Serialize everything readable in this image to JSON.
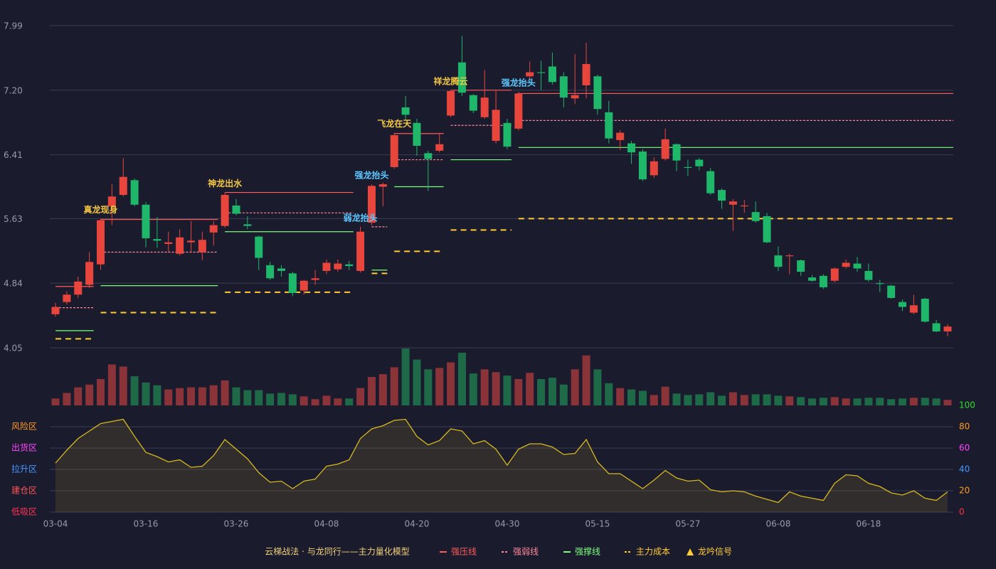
{
  "chart_data": [
    {
      "type": "candlestick",
      "title": "云梯战法 · 与龙同行——主力量化模型",
      "categories": [
        "03-04",
        null,
        null,
        null,
        null,
        null,
        null,
        null,
        "03-16",
        null,
        null,
        null,
        null,
        null,
        null,
        null,
        "03-26",
        null,
        null,
        null,
        null,
        null,
        null,
        null,
        "04-08",
        null,
        null,
        null,
        null,
        null,
        null,
        null,
        "04-20",
        null,
        null,
        null,
        null,
        null,
        null,
        null,
        "04-30",
        null,
        null,
        null,
        null,
        null,
        null,
        null,
        "05-15",
        null,
        null,
        null,
        null,
        null,
        null,
        null,
        "05-27",
        null,
        null,
        null,
        null,
        null,
        null,
        null,
        "06-08",
        null,
        null,
        null,
        null,
        null,
        null,
        null,
        "06-18",
        null,
        null,
        null,
        null,
        null,
        null,
        null
      ],
      "open": [
        4.46,
        4.61,
        4.7,
        4.82,
        5.07,
        5.78,
        5.92,
        6.1,
        5.8,
        5.38,
        5.32,
        5.2,
        5.34,
        5.22,
        5.46,
        5.54,
        5.79,
        5.56,
        5.41,
        5.06,
        5.02,
        4.96,
        4.75,
        4.88,
        4.99,
        5.01,
        5.07,
        4.99,
        5.58,
        6.02,
        6.26,
        6.99,
        6.8,
        6.43,
        6.46,
        6.89,
        7.54,
        7.14,
        6.87,
        6.58,
        6.8,
        6.73,
        7.37,
        7.42,
        7.49,
        7.37,
        7.1,
        7.26,
        7.37,
        6.93,
        6.59,
        6.55,
        6.45,
        6.16,
        6.36,
        6.54,
        6.26,
        6.35,
        6.21,
        5.98,
        5.8,
        5.78,
        5.71,
        5.66,
        5.18,
        5.17,
        5.12,
        4.91,
        4.93,
        4.87,
        5.04,
        5.08,
        4.99,
        4.84,
        4.81,
        4.61,
        4.48,
        4.65,
        4.35,
        4.25
      ],
      "close": [
        4.55,
        4.7,
        4.86,
        5.1,
        5.61,
        5.9,
        6.14,
        5.8,
        5.39,
        5.36,
        5.34,
        5.4,
        5.36,
        5.37,
        5.55,
        5.92,
        5.69,
        5.54,
        5.15,
        4.9,
        4.99,
        4.72,
        4.87,
        4.9,
        5.09,
        5.08,
        5.05,
        5.47,
        6.03,
        6.05,
        6.65,
        6.9,
        6.52,
        6.36,
        6.54,
        7.19,
        7.17,
        6.95,
        7.11,
        6.96,
        6.51,
        7.16,
        7.42,
        7.41,
        7.3,
        7.11,
        7.14,
        7.52,
        6.97,
        6.61,
        6.68,
        6.44,
        6.11,
        6.33,
        6.6,
        6.34,
        6.25,
        6.27,
        5.94,
        5.85,
        5.84,
        5.79,
        5.6,
        5.34,
        5.04,
        5.18,
        4.98,
        4.87,
        4.79,
        5.02,
        5.09,
        5.02,
        4.88,
        4.83,
        4.66,
        4.55,
        4.57,
        4.37,
        4.25,
        4.31
      ],
      "low": [
        4.43,
        4.58,
        4.66,
        4.78,
        5.0,
        5.55,
        5.9,
        5.78,
        5.28,
        5.27,
        5.22,
        5.18,
        5.22,
        5.12,
        5.3,
        5.52,
        5.67,
        5.5,
        5.0,
        4.88,
        4.92,
        4.68,
        4.7,
        4.82,
        4.95,
        4.98,
        5.0,
        4.97,
        5.55,
        5.78,
        6.24,
        6.83,
        6.4,
        5.97,
        6.44,
        6.87,
        7.13,
        6.92,
        6.85,
        6.55,
        6.48,
        6.71,
        7.33,
        7.2,
        7.27,
        6.99,
        7.03,
        7.1,
        6.9,
        6.55,
        6.47,
        6.3,
        6.09,
        6.13,
        6.34,
        6.21,
        6.15,
        6.22,
        5.92,
        5.75,
        5.48,
        5.7,
        5.58,
        5.33,
        4.99,
        4.95,
        4.93,
        4.86,
        4.77,
        4.85,
        5.02,
        4.98,
        4.86,
        4.73,
        4.65,
        4.5,
        4.46,
        4.36,
        4.24,
        4.19
      ],
      "high": [
        4.6,
        4.74,
        4.92,
        5.22,
        5.63,
        6.05,
        6.37,
        6.12,
        5.83,
        5.65,
        5.47,
        5.5,
        5.6,
        5.47,
        5.6,
        5.95,
        5.87,
        5.66,
        5.42,
        5.1,
        5.06,
        4.98,
        4.88,
        5.0,
        5.13,
        5.13,
        5.11,
        5.53,
        6.05,
        6.07,
        6.68,
        7.13,
        6.85,
        6.46,
        6.68,
        7.2,
        7.86,
        7.15,
        7.45,
        7.19,
        6.85,
        7.18,
        7.55,
        7.56,
        7.66,
        7.42,
        7.64,
        7.78,
        7.39,
        7.07,
        6.71,
        6.58,
        6.48,
        6.38,
        6.73,
        6.55,
        6.35,
        6.37,
        6.25,
        6.0,
        5.87,
        5.86,
        5.84,
        5.7,
        5.29,
        5.2,
        5.13,
        4.94,
        4.95,
        5.03,
        5.13,
        5.16,
        5.08,
        4.88,
        4.82,
        4.64,
        4.7,
        4.66,
        4.39,
        4.34
      ],
      "up_color": "#e8453c",
      "down_color": "#1fb76a",
      "ylim": [
        4.05,
        7.99
      ],
      "yticks": [
        7.99,
        {
          "value": 7.2,
          "label": "7.20"
        },
        6.41,
        5.63,
        4.84,
        4.05
      ],
      "grid": true,
      "levels": [
        {
          "name": "强压线",
          "color": "#ff5b5b",
          "dashed": false,
          "segments": [
            [
              0,
              3,
              4.8
            ],
            [
              4,
              14,
              5.62
            ],
            [
              15,
              26,
              5.95
            ],
            [
              30,
              34,
              6.67
            ],
            [
              35,
              40,
              7.2
            ],
            [
              41,
              79,
              7.16
            ]
          ]
        },
        {
          "name": "强弱线",
          "color": "#ff8a9a",
          "dashed": true,
          "segments": [
            [
              0,
              3,
              4.54
            ],
            [
              4,
              14,
              5.22
            ],
            [
              15,
              26,
              5.7
            ],
            [
              28,
              29,
              5.53
            ],
            [
              30,
              34,
              6.35
            ],
            [
              35,
              40,
              6.77
            ],
            [
              41,
              79,
              6.83
            ]
          ]
        },
        {
          "name": "强撑线",
          "color": "#7dff7d",
          "dashed": false,
          "segments": [
            [
              0,
              3,
              4.26
            ],
            [
              4,
              14,
              4.81
            ],
            [
              15,
              26,
              5.47
            ],
            [
              28,
              29,
              5.0
            ],
            [
              30,
              34,
              6.02
            ],
            [
              35,
              40,
              6.35
            ],
            [
              41,
              79,
              6.5
            ]
          ]
        },
        {
          "name": "主力成本",
          "color": "#ffcc33",
          "dashed": true,
          "segments": [
            [
              0,
              3,
              4.16
            ],
            [
              4,
              14,
              4.48
            ],
            [
              15,
              26,
              4.73
            ],
            [
              28,
              29,
              4.96
            ],
            [
              30,
              34,
              5.23
            ],
            [
              35,
              40,
              5.49
            ],
            [
              41,
              79,
              5.63
            ]
          ]
        }
      ],
      "signals": [
        {
          "index": 4,
          "label": "真龙现身",
          "color": "#f5c842"
        },
        {
          "index": 15,
          "label": "神龙出水",
          "color": "#f5c842"
        },
        {
          "index": 27,
          "label": "弱龙抬头",
          "color": "#5cc8ff"
        },
        {
          "index": 28,
          "label": "强龙抬头",
          "color": "#5cc8ff"
        },
        {
          "index": 30,
          "label": "飞龙在天",
          "color": "#f5c842"
        },
        {
          "index": 35,
          "label": "祥龙腾云",
          "color": "#f5c842"
        },
        {
          "index": 41,
          "label": "强龙抬头",
          "color": "#5cc8ff"
        }
      ],
      "signal_name": "龙吟信号",
      "signal_color": "#ffcc33"
    },
    {
      "type": "bar",
      "values": [
        10,
        18,
        26,
        30,
        38,
        59,
        56,
        42,
        33,
        29,
        23,
        25,
        26,
        26,
        29,
        36,
        26,
        22,
        22,
        17,
        18,
        16,
        13,
        9,
        14,
        10,
        10,
        25,
        41,
        45,
        55,
        82,
        66,
        52,
        54,
        62,
        76,
        46,
        52,
        48,
        43,
        38,
        47,
        38,
        40,
        30,
        52,
        72,
        52,
        32,
        25,
        23,
        21,
        15,
        27,
        17,
        15,
        16,
        19,
        14,
        19,
        15,
        16,
        16,
        14,
        13,
        12,
        10,
        11,
        12,
        10,
        10,
        11,
        11,
        9,
        10,
        11,
        11,
        10,
        8
      ],
      "up_color": "#8a3338",
      "down_color": "#1e6a48"
    },
    {
      "type": "area",
      "values": [
        46,
        58,
        69,
        76,
        83,
        85,
        87,
        71,
        56,
        52,
        47,
        49,
        42,
        43,
        53,
        68,
        59,
        50,
        37,
        28,
        29,
        22,
        29,
        31,
        43,
        45,
        49,
        69,
        78,
        81,
        86,
        87,
        71,
        63,
        67,
        78,
        76,
        64,
        67,
        59,
        44,
        59,
        64,
        64,
        61,
        54,
        55,
        68,
        47,
        36,
        36,
        29,
        22,
        30,
        39,
        32,
        29,
        30,
        21,
        19,
        20,
        19,
        15,
        12,
        9,
        19,
        15,
        13,
        11,
        27,
        35,
        34,
        27,
        24,
        18,
        16,
        20,
        13,
        11,
        19
      ],
      "color": "#d6b820",
      "ylim": [
        0,
        100
      ],
      "yticks": [
        0,
        20,
        40,
        60,
        80,
        100
      ],
      "ytick_colors": [
        "#ff3344",
        "#ff9a22",
        "#4499ff",
        "#ff44ff",
        "#ff9a22",
        "#33dd33"
      ],
      "zones": [
        {
          "label": "低吸区",
          "value": 0,
          "color": "#ff3355"
        },
        {
          "label": "建仓区",
          "value": 20,
          "color": "#ff5555"
        },
        {
          "label": "拉升区",
          "value": 40,
          "color": "#4499ff"
        },
        {
          "label": "出货区",
          "value": 60,
          "color": "#ff44ff"
        },
        {
          "label": "风险区",
          "value": 80,
          "color": "#ff9a22"
        }
      ]
    }
  ]
}
